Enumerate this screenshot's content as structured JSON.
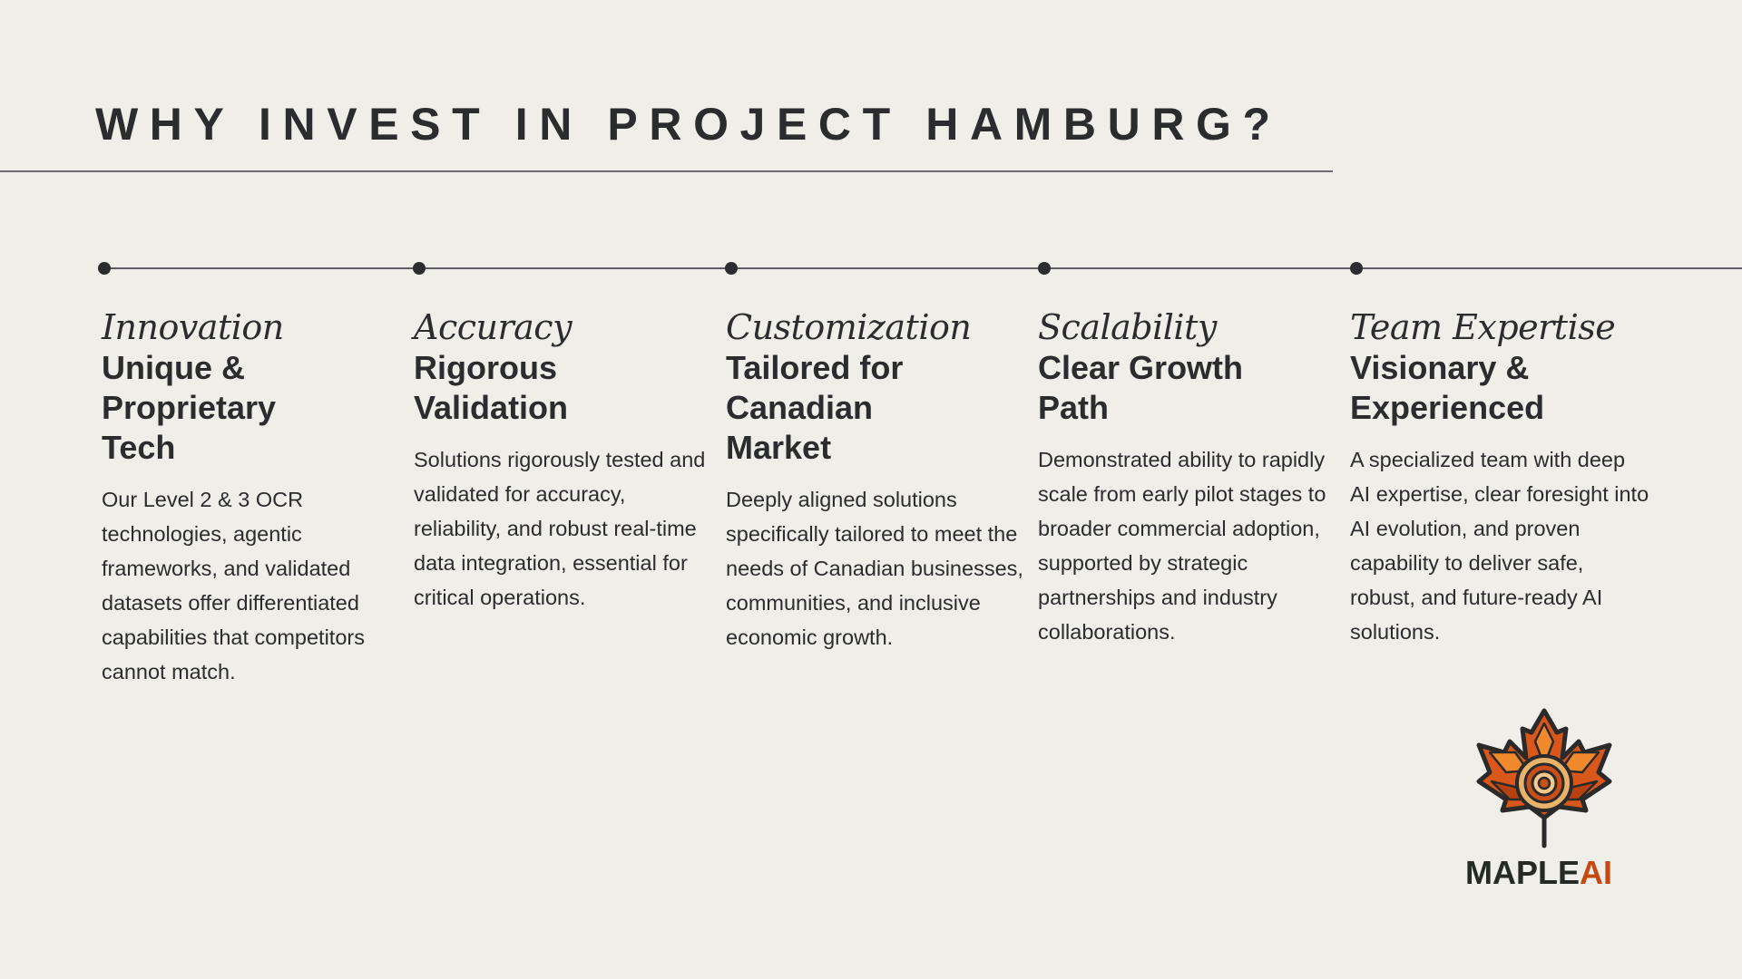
{
  "slide": {
    "title": "WHY INVEST IN PROJECT HAMBURG?"
  },
  "columns": [
    {
      "category": "Innovation",
      "heading": "Unique & Proprietary Tech",
      "body": "Our Level 2 & 3 OCR technologies, agentic frameworks, and validated datasets offer differentiated capabilities that competitors cannot match."
    },
    {
      "category": "Accuracy",
      "heading": "Rigorous Validation",
      "body": "Solutions rigorously tested and validated for accuracy, reliability, and robust real-time data integration, essential for critical operations."
    },
    {
      "category": "Customization",
      "heading": "Tailored for Canadian Market",
      "body": "Deeply aligned solutions specifically tailored to meet the needs of Canadian businesses, communities, and inclusive economic growth."
    },
    {
      "category": "Scalability",
      "heading": "Clear Growth Path",
      "body": "Demonstrated ability to rapidly scale from early pilot stages to broader commercial adoption, supported by strategic partnerships and industry collaborations."
    },
    {
      "category": "Team Expertise",
      "heading": "Visionary & Experienced",
      "body": "A specialized team with deep AI expertise, clear foresight into AI evolution, and proven capability to deliver safe, robust, and future-ready AI solutions."
    }
  ],
  "logo": {
    "icon": "maple-leaf-icon",
    "word_part1": "MAPLE",
    "word_part2": "AI"
  },
  "colors": {
    "background": "#efeee8",
    "text": "#2b2c2e",
    "brand_orange": "#c54a12",
    "leaf_orange": "#e0621c"
  }
}
